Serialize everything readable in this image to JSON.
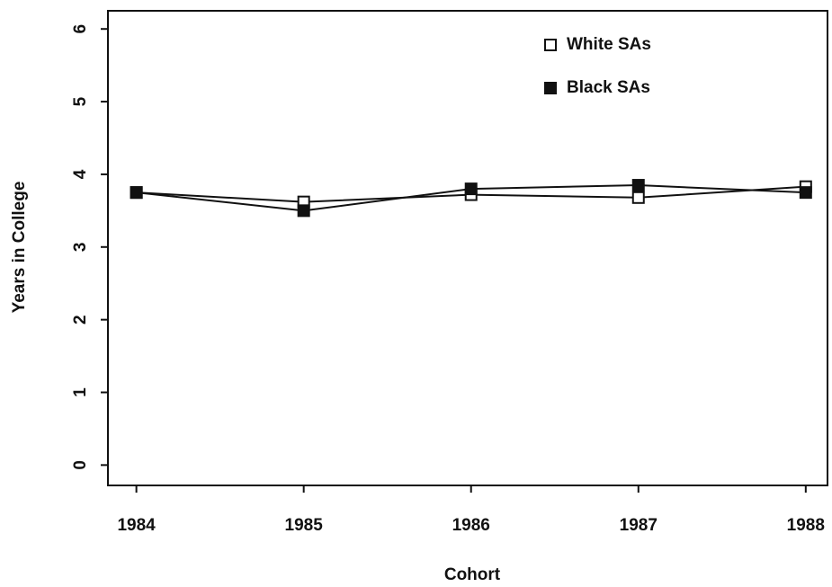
{
  "chart_data": {
    "type": "line",
    "x_label": "Cohort",
    "y_label": "Years in College",
    "x": [
      1984,
      1985,
      1986,
      1987,
      1988
    ],
    "xlim": [
      1983.83,
      1988.13
    ],
    "xticks": [
      1984,
      1985,
      1986,
      1987,
      1988
    ],
    "ylim": [
      -0.28,
      6.25
    ],
    "yticks": [
      0,
      1,
      2,
      3,
      4,
      5,
      6
    ],
    "legend": "top-right",
    "series": [
      {
        "name": "White SAs",
        "color": "#111111",
        "marker": "open-square",
        "values": [
          3.75,
          3.62,
          3.72,
          3.68,
          3.83
        ]
      },
      {
        "name": "Black SAs",
        "color": "#111111",
        "marker": "filled-square",
        "values": [
          3.75,
          3.5,
          3.8,
          3.85,
          3.75
        ]
      }
    ]
  }
}
